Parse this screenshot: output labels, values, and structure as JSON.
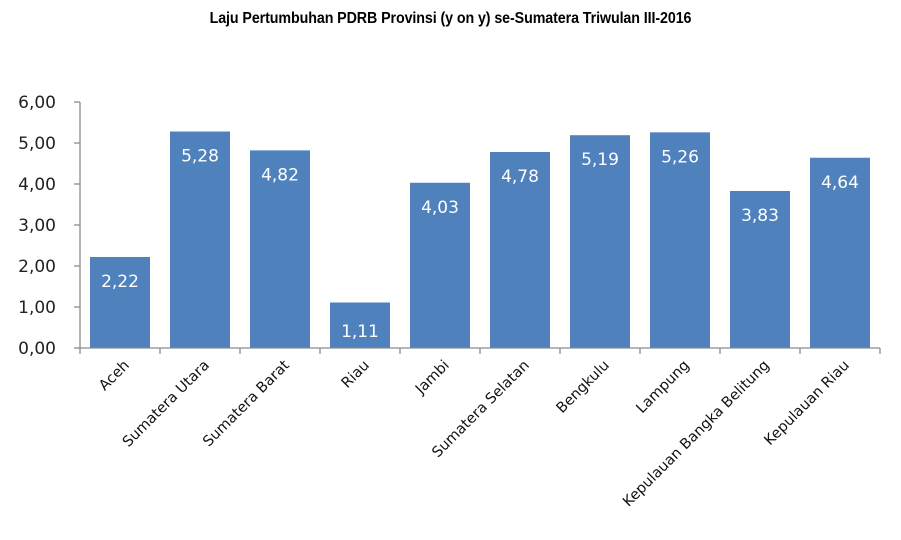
{
  "chart_data": {
    "type": "bar",
    "title": "Laju Pertumbuhan PDRB Provinsi (y on y) se-Sumatera Triwulan III-2016",
    "xlabel": "",
    "ylabel": "",
    "ylim": [
      0,
      6
    ],
    "yticks": [
      "0,00",
      "1,00",
      "2,00",
      "3,00",
      "4,00",
      "5,00",
      "6,00"
    ],
    "grid": false,
    "legend": null,
    "bar_color": "#4F81BD",
    "categories": [
      "Aceh",
      "Sumatera Utara",
      "Sumatera Barat",
      "Riau",
      "Jambi",
      "Sumatera Selatan",
      "Bengkulu",
      "Lampung",
      "Kepulauan Bangka Belitung",
      "Kepulauan Riau"
    ],
    "values": [
      2.22,
      5.28,
      4.82,
      1.11,
      4.03,
      4.78,
      5.19,
      5.26,
      3.83,
      4.64
    ],
    "value_labels": [
      "2,22",
      "5,28",
      "4,82",
      "1,11",
      "4,03",
      "4,78",
      "5,19",
      "5,26",
      "3,83",
      "4,64"
    ]
  }
}
